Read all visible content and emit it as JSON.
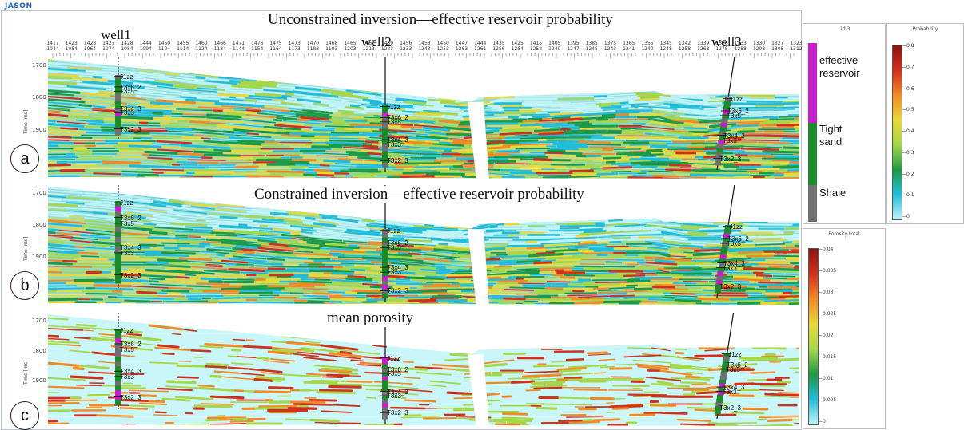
{
  "app": {
    "brand": "JASON"
  },
  "titles": {
    "panel_a": "Unconstrained inversion—effective reservoir probability",
    "panel_b": "Constrained inversion—effective reservoir probability",
    "panel_c": "mean porosity"
  },
  "panels": [
    {
      "letter": "a"
    },
    {
      "letter": "b"
    },
    {
      "letter": "c"
    }
  ],
  "wells": [
    "well1",
    "well2",
    "well3"
  ],
  "axis": {
    "y_label": "Time [ms]",
    "y_ticks": [
      "1700",
      "1800",
      "1900"
    ],
    "trace_top": [
      "1417",
      "1423",
      "1428",
      "1427",
      "1428",
      "1444",
      "1450",
      "1455",
      "1460",
      "1466",
      "1471",
      "1476",
      "1475",
      "1473",
      "1470",
      "1468",
      "1465",
      "1462",
      "1459",
      "1456",
      "1453",
      "1450",
      "1447",
      "1444",
      "1435",
      "1425",
      "1415",
      "1405",
      "1395",
      "1385",
      "1375",
      "1365",
      "1355",
      "1345",
      "1342",
      "1339",
      "1336",
      "1333",
      "1330",
      "1327",
      "1323"
    ],
    "trace_bottom": [
      "1044",
      "1054",
      "1064",
      "1074",
      "1084",
      "1094",
      "1104",
      "1114",
      "1124",
      "1134",
      "1144",
      "1154",
      "1164",
      "1173",
      "1183",
      "1193",
      "1203",
      "1213",
      "1223",
      "1233",
      "1243",
      "1253",
      "1263",
      "1261",
      "1256",
      "1254",
      "1252",
      "1249",
      "1247",
      "1245",
      "1243",
      "1241",
      "1240",
      "1248",
      "1258",
      "1268",
      "1278",
      "1288",
      "1298",
      "1308",
      "1312"
    ]
  },
  "horizons": [
    "J1zz",
    "T3x6_2",
    "T3x5",
    "T3x4_3",
    "T3x3",
    "T3x2_3"
  ],
  "lith_legend": {
    "title": "Lith3",
    "classes": [
      {
        "label": "effective reservoir",
        "color": "#c31ec9"
      },
      {
        "label": "Tight sand",
        "color": "#1c8a2a"
      },
      {
        "label": "Shale",
        "color": "#6f6f6f"
      }
    ]
  },
  "probability_colorbar": {
    "title": "Probability",
    "ticks": [
      "0.8",
      "0.7",
      "0.6",
      "0.5",
      "0.4",
      "0.3",
      "0.2",
      "0.1",
      "0"
    ]
  },
  "porosity_colorbar": {
    "title": "Porosity total",
    "ticks": [
      "0.04",
      "0.035",
      "0.03",
      "0.025",
      "0.02",
      "0.015",
      "0.01",
      "0.005",
      "0"
    ]
  },
  "colors": {
    "colormap": [
      "#bff3f8",
      "#22bcd8",
      "#1e9a46",
      "#a6d64a",
      "#e9d83a",
      "#f08a25",
      "#d0301c",
      "#8c1410"
    ]
  }
}
